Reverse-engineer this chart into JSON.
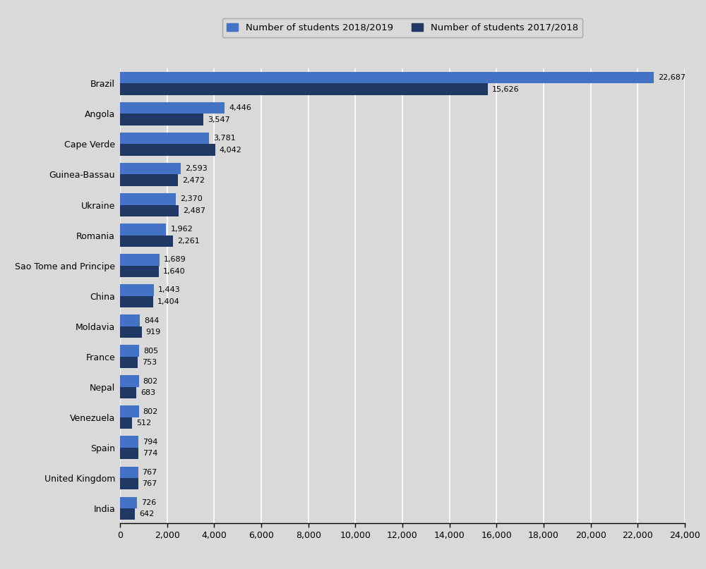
{
  "countries": [
    "Brazil",
    "Angola",
    "Cape Verde",
    "Guinea-Bassau",
    "Ukraine",
    "Romania",
    "Sao Tome and Principe",
    "China",
    "Moldavia",
    "France",
    "Nepal",
    "Venezuela",
    "Spain",
    "United Kingdom",
    "India"
  ],
  "values_2018_2019": [
    22687,
    4446,
    3781,
    2593,
    2370,
    1962,
    1689,
    1443,
    844,
    805,
    802,
    802,
    794,
    767,
    726
  ],
  "values_2017_2018": [
    15626,
    3547,
    4042,
    2472,
    2487,
    2261,
    1640,
    1404,
    919,
    753,
    683,
    512,
    774,
    767,
    642
  ],
  "color_2018_2019": "#4472c4",
  "color_2017_2018": "#1f3864",
  "background_color": "#d9d9d9",
  "plot_background": "#d9d9d9",
  "legend_label_2018_2019": "Number of students 2018/2019",
  "legend_label_2017_2018": "Number of students 2017/2018",
  "xlim": [
    0,
    24000
  ],
  "xticks": [
    0,
    2000,
    4000,
    6000,
    8000,
    10000,
    12000,
    14000,
    16000,
    18000,
    20000,
    22000,
    24000
  ],
  "xtick_labels": [
    "0",
    "2,000",
    "4,000",
    "6,000",
    "8,000",
    "10,000",
    "12,000",
    "14,000",
    "16,000",
    "18,000",
    "20,000",
    "22,000",
    "24,000"
  ],
  "bar_height": 0.38,
  "font_size_labels": 8.0,
  "font_size_ticks": 9.0,
  "font_size_legend": 9.5
}
